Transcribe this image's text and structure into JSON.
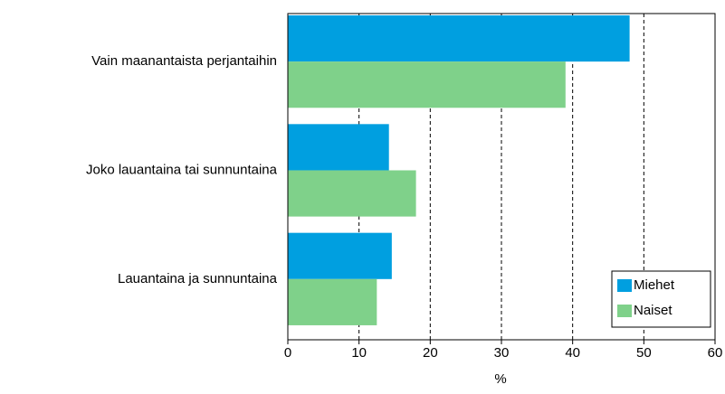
{
  "chart_data": {
    "type": "barh",
    "categories": [
      "Vain maanantaista perjantaihin",
      "Joko lauantaina tai sunnuntaina",
      "Lauantaina ja sunnuntaina"
    ],
    "series": [
      {
        "name": "Miehet",
        "color": "#009fe0",
        "values": [
          48,
          14.2,
          14.6
        ]
      },
      {
        "name": "Naiset",
        "color": "#7fd18a",
        "values": [
          39,
          18,
          12.5
        ]
      }
    ],
    "xlabel": "%",
    "xlim": [
      0,
      60
    ],
    "xticks": [
      0,
      10,
      20,
      30,
      40,
      50,
      60
    ],
    "grid": true,
    "legend": "lower right"
  }
}
